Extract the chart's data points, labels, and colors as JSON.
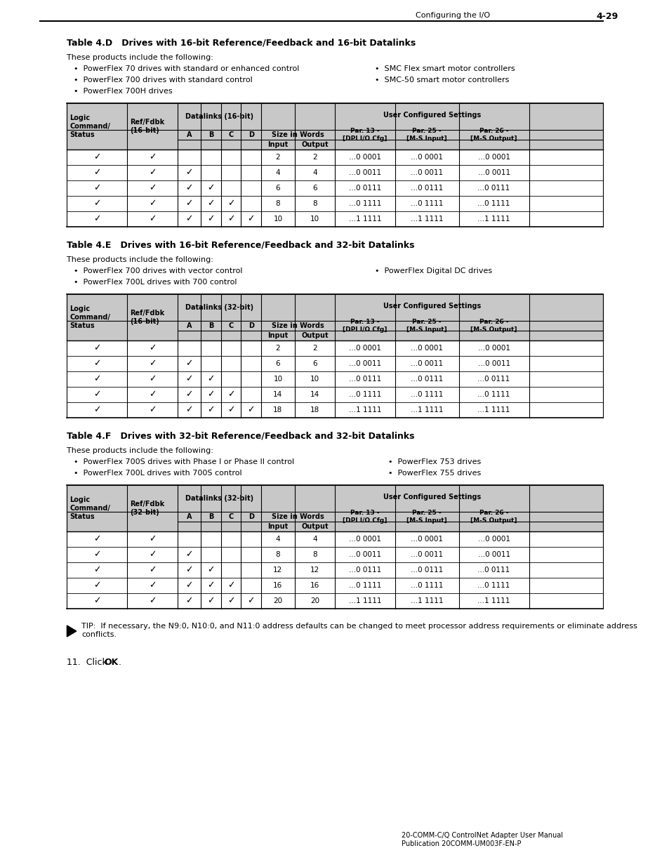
{
  "page_header_left": "Configuring the I/O",
  "page_header_right": "4-29",
  "bg_color": "#ffffff",
  "text_color": "#000000",
  "table_d": {
    "title": "Table 4.D   Drives with 16-bit Reference/Feedback and 16-bit Datalinks",
    "intro": "These products include the following:",
    "bullets_left": [
      "PowerFlex 70 drives with standard or enhanced control",
      "PowerFlex 700 drives with standard control",
      "PowerFlex 700H drives"
    ],
    "bullets_right": [
      "SMC Flex smart motor controllers",
      "SMC-50 smart motor controllers"
    ],
    "col1_header": "Logic\nCommand/\nStatus",
    "col2_header": "Ref/Fdbk\n(16-bit)",
    "col3_header": "Datalinks (16-bit)",
    "col4_header": "User Configured Settings",
    "sub_col3": [
      "A",
      "B",
      "C",
      "D"
    ],
    "sub_col4a": "Size in Words",
    "sub_col4b": [
      "Input",
      "Output"
    ],
    "sub_col4c": "Par. 13 -\n[DPI I/O Cfg]",
    "sub_col4d": "Par. 25 -\n[M-S Input]",
    "sub_col4e": "Par. 26 -\n[M-S Output]",
    "rows": [
      {
        "logic": true,
        "ref": true,
        "A": false,
        "B": false,
        "C": false,
        "D": false,
        "input": "2",
        "output": "2",
        "par13": "...0 0001",
        "par25": "...0 0001",
        "par26": "...0 0001"
      },
      {
        "logic": true,
        "ref": true,
        "A": true,
        "B": false,
        "C": false,
        "D": false,
        "input": "4",
        "output": "4",
        "par13": "...0 0011",
        "par25": "...0 0011",
        "par26": "...0 0011"
      },
      {
        "logic": true,
        "ref": true,
        "A": true,
        "B": true,
        "C": false,
        "D": false,
        "input": "6",
        "output": "6",
        "par13": "...0 0111",
        "par25": "...0 0111",
        "par26": "...0 0111"
      },
      {
        "logic": true,
        "ref": true,
        "A": true,
        "B": true,
        "C": true,
        "D": false,
        "input": "8",
        "output": "8",
        "par13": "...0 1111",
        "par25": "...0 1111",
        "par26": "...0 1111"
      },
      {
        "logic": true,
        "ref": true,
        "A": true,
        "B": true,
        "C": true,
        "D": true,
        "input": "10",
        "output": "10",
        "par13": "...1 1111",
        "par25": "...1 1111",
        "par26": "...1 1111"
      }
    ]
  },
  "table_e": {
    "title": "Table 4.E   Drives with 16-bit Reference/Feedback and 32-bit Datalinks",
    "intro": "These products include the following:",
    "bullets_left": [
      "PowerFlex 700 drives with vector control",
      "PowerFlex 700L drives with 700 control"
    ],
    "bullets_right": [
      "PowerFlex Digital DC drives"
    ],
    "col1_header": "Logic\nCommand/\nStatus",
    "col2_header": "Ref/Fdbk\n(16-bit)",
    "col3_header": "Datalinks (32-bit)",
    "rows": [
      {
        "logic": true,
        "ref": true,
        "A": false,
        "B": false,
        "C": false,
        "D": false,
        "input": "2",
        "output": "2",
        "par13": "...0 0001",
        "par25": "...0 0001",
        "par26": "...0 0001"
      },
      {
        "logic": true,
        "ref": true,
        "A": true,
        "B": false,
        "C": false,
        "D": false,
        "input": "6",
        "output": "6",
        "par13": "...0 0011",
        "par25": "...0 0011",
        "par26": "...0 0011"
      },
      {
        "logic": true,
        "ref": true,
        "A": true,
        "B": true,
        "C": false,
        "D": false,
        "input": "10",
        "output": "10",
        "par13": "...0 0111",
        "par25": "...0 0111",
        "par26": "...0 0111"
      },
      {
        "logic": true,
        "ref": true,
        "A": true,
        "B": true,
        "C": true,
        "D": false,
        "input": "14",
        "output": "14",
        "par13": "...0 1111",
        "par25": "...0 1111",
        "par26": "...0 1111"
      },
      {
        "logic": true,
        "ref": true,
        "A": true,
        "B": true,
        "C": true,
        "D": true,
        "input": "18",
        "output": "18",
        "par13": "...1 1111",
        "par25": "...1 1111",
        "par26": "...1 1111"
      }
    ]
  },
  "table_f": {
    "title": "Table 4.F   Drives with 32-bit Reference/Feedback and 32-bit Datalinks",
    "intro": "These products include the following:",
    "bullets_left": [
      "PowerFlex 700S drives with Phase I or Phase II control",
      "PowerFlex 700L drives with 700S control"
    ],
    "bullets_right": [
      "PowerFlex 753 drives",
      "PowerFlex 755 drives"
    ],
    "col1_header": "Logic\nCommand/\nStatus",
    "col2_header": "Ref/Fdbk\n(32-bit)",
    "col3_header": "Datalinks (32-bit)",
    "rows": [
      {
        "logic": true,
        "ref": true,
        "A": false,
        "B": false,
        "C": false,
        "D": false,
        "input": "4",
        "output": "4",
        "par13": "...0 0001",
        "par25": "...0 0001",
        "par26": "...0 0001"
      },
      {
        "logic": true,
        "ref": true,
        "A": true,
        "B": false,
        "C": false,
        "D": false,
        "input": "8",
        "output": "8",
        "par13": "...0 0011",
        "par25": "...0 0011",
        "par26": "...0 0011"
      },
      {
        "logic": true,
        "ref": true,
        "A": true,
        "B": true,
        "C": false,
        "D": false,
        "input": "12",
        "output": "12",
        "par13": "...0 0111",
        "par25": "...0 0111",
        "par26": "...0 0111"
      },
      {
        "logic": true,
        "ref": true,
        "A": true,
        "B": true,
        "C": true,
        "D": false,
        "input": "16",
        "output": "16",
        "par13": "...0 1111",
        "par25": "...0 1111",
        "par26": "...0 1111"
      },
      {
        "logic": true,
        "ref": true,
        "A": true,
        "B": true,
        "C": true,
        "D": true,
        "input": "20",
        "output": "20",
        "par13": "...1 1111",
        "par25": "...1 1111",
        "par26": "...1 1111"
      }
    ]
  },
  "tip_text": "TIP:  If necessary, the N9:0, N10:0, and N11:0 address defaults can be changed to meet processor address requirements or eliminate address conflicts.",
  "step_text": "11.  Click OK.",
  "footer_left": "20-COMM-C/Q ControlNet Adapter User Manual\nPublication 20COMM-UM003F-EN-P"
}
